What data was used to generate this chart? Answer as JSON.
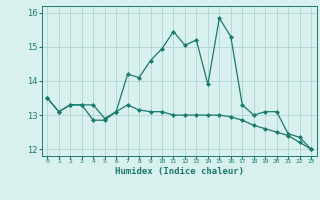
{
  "xlabel": "Humidex (Indice chaleur)",
  "ylabel": "",
  "x_values": [
    0,
    1,
    2,
    3,
    4,
    5,
    6,
    7,
    8,
    9,
    10,
    11,
    12,
    13,
    14,
    15,
    16,
    17,
    18,
    19,
    20,
    21,
    22,
    23
  ],
  "line1": [
    13.5,
    13.1,
    13.3,
    13.3,
    13.3,
    12.9,
    13.1,
    14.2,
    14.1,
    14.6,
    14.95,
    15.45,
    15.05,
    15.2,
    13.9,
    15.85,
    15.3,
    13.3,
    13.0,
    13.1,
    13.1,
    12.45,
    12.35,
    12.0
  ],
  "line2": [
    13.5,
    13.1,
    13.3,
    13.3,
    12.85,
    12.85,
    13.1,
    13.3,
    13.15,
    13.1,
    13.1,
    13.0,
    13.0,
    13.0,
    13.0,
    13.0,
    12.95,
    12.85,
    12.7,
    12.6,
    12.5,
    12.4,
    12.2,
    12.0
  ],
  "color": "#1a7a6e",
  "bg_color": "#d8f0ee",
  "grid_color": "#aacfcc",
  "ylim": [
    11.8,
    16.2
  ],
  "xlim": [
    -0.5,
    23.5
  ],
  "tick_labels": [
    "0",
    "1",
    "2",
    "3",
    "4",
    "5",
    "6",
    "7",
    "8",
    "9",
    "10",
    "11",
    "12",
    "13",
    "14",
    "15",
    "16",
    "17",
    "18",
    "19",
    "20",
    "21",
    "22",
    "23"
  ]
}
